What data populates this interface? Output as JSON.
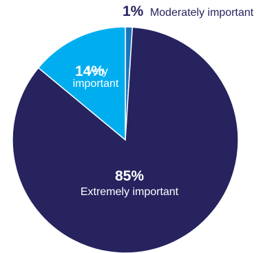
{
  "chart_data": {
    "type": "pie",
    "slices": [
      {
        "label_lines": [
          "Moderately important"
        ],
        "percent_label": "1%",
        "value": 1,
        "color": "#1b75bb"
      },
      {
        "label_lines": [
          "Very",
          "important"
        ],
        "percent_label": "14%",
        "value": 14,
        "color": "#00aeef"
      },
      {
        "label_lines": [
          "Extremely important"
        ],
        "percent_label": "85%",
        "value": 85,
        "color": "#26235f"
      }
    ],
    "start": "top",
    "direction": "counterclockwise",
    "slice_border_color": "#ffffff"
  }
}
